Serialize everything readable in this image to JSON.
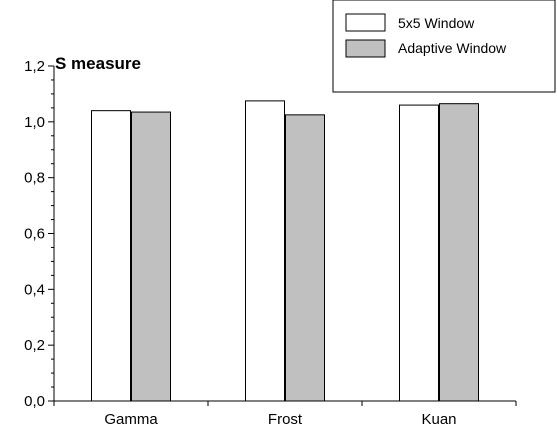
{
  "chart_data": {
    "type": "bar",
    "title": "S measure",
    "xlabel": "",
    "ylabel": "",
    "categories": [
      "Gamma",
      "Frost",
      "Kuan"
    ],
    "series": [
      {
        "name": "5x5 Window",
        "values": [
          1.04,
          1.075,
          1.06
        ],
        "color": "#ffffff"
      },
      {
        "name": "Adaptive Window",
        "values": [
          1.035,
          1.025,
          1.065
        ],
        "color": "#c0c0c0"
      }
    ],
    "ylim": [
      0,
      1.2
    ],
    "yticks": [
      "0,0",
      "0,2",
      "0,4",
      "0,6",
      "0,8",
      "1,0",
      "1,2"
    ],
    "grid": false,
    "legend_position": "top-right"
  }
}
